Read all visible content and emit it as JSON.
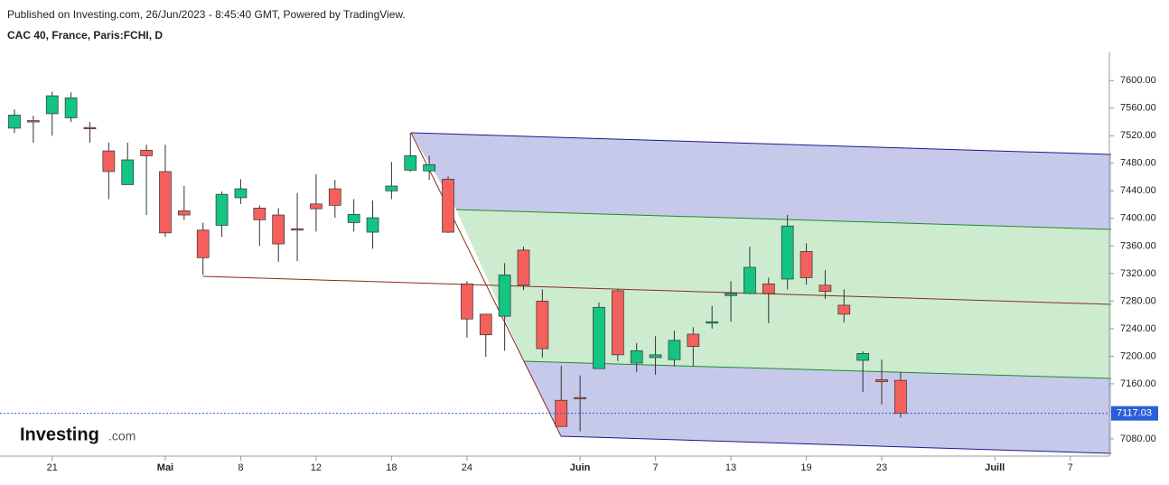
{
  "header": {
    "published": "Published on Investing.com, 26/Jun/2023 - 8:45:40 GMT, Powered by TradingView.",
    "symbol": "CAC 40, France, Paris:FCHI, D"
  },
  "logo": {
    "brand": "Investing",
    "suffix": ".com"
  },
  "chart_data": {
    "type": "candlestick",
    "categories": [
      null,
      null,
      "21",
      null,
      null,
      null,
      null,
      null,
      "Mai",
      null,
      null,
      null,
      "8",
      null,
      null,
      null,
      "12",
      null,
      null,
      null,
      "18",
      null,
      null,
      null,
      "24",
      null,
      null,
      null,
      null,
      null,
      "Juin",
      null,
      null,
      null,
      "7",
      null,
      null,
      null,
      "13",
      null,
      null,
      null,
      "19",
      null,
      null,
      null,
      "23",
      null,
      null,
      null,
      null,
      null,
      "Juill",
      null,
      null,
      null,
      "7",
      null
    ],
    "open": [
      7531,
      7542,
      7552,
      7546,
      7532,
      7498,
      7449,
      7499,
      7468,
      7411,
      7383,
      7390,
      7430,
      7415,
      7405,
      7385,
      7421,
      7443,
      7394,
      7380,
      7440,
      7470,
      7469,
      7457,
      7305,
      7261,
      7258,
      7354,
      7280,
      7136,
      7140,
      7182,
      7295,
      7190,
      7198,
      7195,
      7232,
      7249,
      7288,
      7291,
      7305,
      7312,
      7352,
      7303,
      7274,
      7194,
      7166,
      7165,
      null,
      null,
      null,
      null,
      null,
      null,
      null,
      null,
      null,
      null
    ],
    "high": [
      7558,
      7549,
      7584,
      7583,
      7540,
      7510,
      7510,
      7507,
      7507,
      7447,
      7394,
      7439,
      7457,
      7419,
      7415,
      7437,
      7464,
      7456,
      7428,
      7426,
      7482,
      7524,
      7491,
      7461,
      7309,
      7261,
      7335,
      7359,
      7297,
      7186,
      7172,
      7278,
      7297,
      7219,
      7229,
      7237,
      7242,
      7273,
      7309,
      7359,
      7314,
      7405,
      7364,
      7325,
      7297,
      7207,
      7195,
      7177,
      null,
      null,
      null,
      null,
      null,
      null,
      null,
      null,
      null,
      null
    ],
    "low": [
      7524,
      7510,
      7520,
      7540,
      7510,
      7428,
      7449,
      7405,
      7373,
      7398,
      7318,
      7373,
      7421,
      7360,
      7337,
      7338,
      7381,
      7401,
      7381,
      7356,
      7428,
      7468,
      7456,
      7379,
      7227,
      7199,
      7208,
      7296,
      7198,
      7098,
      7091,
      7182,
      7193,
      7177,
      7173,
      7185,
      7186,
      7240,
      7250,
      7290,
      7248,
      7297,
      7304,
      7283,
      7249,
      7148,
      7130,
      7111,
      null,
      null,
      null,
      null,
      null,
      null,
      null,
      null,
      null,
      null
    ],
    "close": [
      7550,
      7540,
      7578,
      7575,
      7530,
      7468,
      7485,
      7491,
      7379,
      7405,
      7343,
      7435,
      7443,
      7398,
      7363,
      7383,
      7414,
      7419,
      7406,
      7401,
      7447,
      7491,
      7478,
      7380,
      7254,
      7231,
      7318,
      7303,
      7211,
      7098,
      7138,
      7271,
      7202,
      7208,
      7202,
      7223,
      7214,
      7250,
      7291,
      7329,
      7291,
      7389,
      7314,
      7294,
      7261,
      7204,
      7163,
      7117.03,
      null,
      null,
      null,
      null,
      null,
      null,
      null,
      null,
      null,
      null
    ],
    "up_color": "#13c482",
    "down_color": "#f4605b",
    "ylim": [
      7055,
      7641
    ],
    "yticks": [
      {
        "value": 7080,
        "label": "7080.00"
      },
      {
        "value": 7120,
        "label": "7120.00"
      },
      {
        "value": 7160,
        "label": "7160.00"
      },
      {
        "value": 7200,
        "label": "7200.00"
      },
      {
        "value": 7240,
        "label": "7240.00"
      },
      {
        "value": 7280,
        "label": "7280.00"
      },
      {
        "value": 7320,
        "label": "7320.00"
      },
      {
        "value": 7360,
        "label": "7360.00"
      },
      {
        "value": 7400,
        "label": "7400.00"
      },
      {
        "value": 7440,
        "label": "7440.00"
      },
      {
        "value": 7480,
        "label": "7480.00"
      },
      {
        "value": 7520,
        "label": "7520.00"
      },
      {
        "value": 7560,
        "label": "7560.00"
      },
      {
        "value": 7600,
        "label": "7600.00"
      }
    ],
    "last_price": {
      "value": 7117.03,
      "label": "7117.03"
    }
  }
}
